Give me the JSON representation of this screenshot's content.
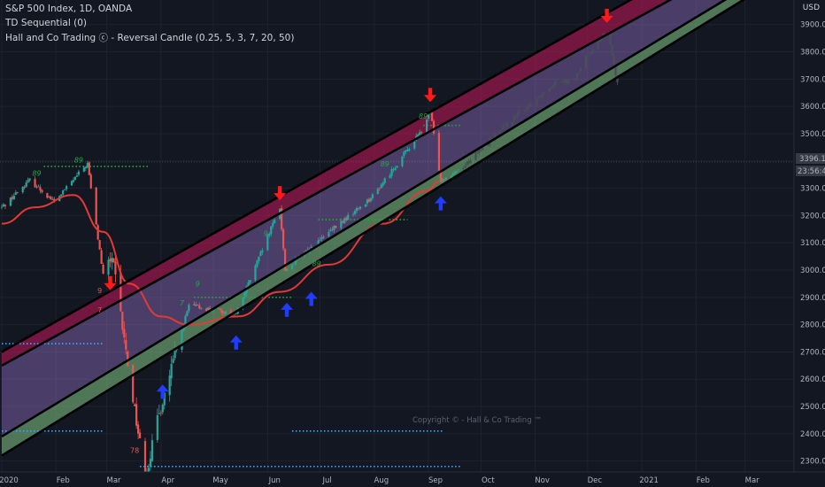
{
  "header": {
    "title": "S&P 500 Index, 1D, OANDA",
    "indicator_1": "TD Sequential (0)",
    "indicator_2": "Hall and Co Trading ⓒ - Reversal Candle (0.25, 5, 3, 7, 20, 50)"
  },
  "currency_label": "USD",
  "watermark": "Copyright © - Hall & Co Trading ™",
  "price_tags": {
    "last_price": "3396.1",
    "countdown": "23:56:45"
  },
  "colors": {
    "background": "#131722",
    "bull_candle": "#26a69a",
    "bear_candle": "#ef5350",
    "moving_average": "#e53935",
    "channel_lines": "#000000",
    "upper_band_fill": "#c2185b",
    "middle_band_fill": "#9575cd",
    "lower_band_fill": "#81c784",
    "sell_arrow": "#ff1a1a",
    "buy_arrow": "#1f3cff"
  },
  "chart_data": {
    "type": "candlestick",
    "symbol": "S&P 500 Index",
    "interval": "1D",
    "source": "OANDA",
    "y_axis": {
      "unit": "USD",
      "range": [
        2260,
        3990
      ],
      "ticks": [
        "2300.0",
        "2400.0",
        "2500.0",
        "2600.0",
        "2700.0",
        "2800.0",
        "2900.0",
        "3000.0",
        "3100.0",
        "3200.0",
        "3300.0",
        "3400.0",
        "3500.0",
        "3600.0",
        "3700.0",
        "3800.0",
        "3900.0"
      ]
    },
    "x_axis": {
      "range": [
        "2020-01-01",
        "2021-03-28"
      ],
      "tick_labels": [
        "2020",
        "Feb",
        "Mar",
        "Apr",
        "May",
        "Jun",
        "Jul",
        "Aug",
        "Sep",
        "Oct",
        "Nov",
        "Dec",
        "2021",
        "Feb",
        "Mar"
      ]
    },
    "price_path": [
      {
        "date": "2020-01-01",
        "close": 3230
      },
      {
        "date": "2020-01-17",
        "close": 3330
      },
      {
        "date": "2020-01-31",
        "close": 3250
      },
      {
        "date": "2020-02-19",
        "close": 3390
      },
      {
        "date": "2020-02-28",
        "close": 2980
      },
      {
        "date": "2020-03-04",
        "close": 3050
      },
      {
        "date": "2020-03-12",
        "close": 2700
      },
      {
        "date": "2020-03-23",
        "close": 2240
      },
      {
        "date": "2020-04-01",
        "close": 2500
      },
      {
        "date": "2020-04-17",
        "close": 2870
      },
      {
        "date": "2020-05-14",
        "close": 2840
      },
      {
        "date": "2020-06-08",
        "close": 3230
      },
      {
        "date": "2020-06-11",
        "close": 3000
      },
      {
        "date": "2020-07-01",
        "close": 3110
      },
      {
        "date": "2020-07-31",
        "close": 3270
      },
      {
        "date": "2020-08-28",
        "close": 3510
      },
      {
        "date": "2020-09-02",
        "close": 3580
      },
      {
        "date": "2020-09-08",
        "close": 3330
      },
      {
        "date": "2020-09-21",
        "close": 3380
      },
      {
        "date": "2020-10-10",
        "close": 3500
      },
      {
        "date": "2020-10-31",
        "close": 3620
      },
      {
        "date": "2020-11-14",
        "close": 3700
      },
      {
        "date": "2020-11-23",
        "close": 3690
      },
      {
        "date": "2020-12-01",
        "close": 3790
      },
      {
        "date": "2020-12-13",
        "close": 3880
      },
      {
        "date": "2020-12-15",
        "close": 3780
      },
      {
        "date": "2020-12-20",
        "close": 3640
      }
    ],
    "moving_average": [
      {
        "date": "2020-01-01",
        "value": 3170
      },
      {
        "date": "2020-01-20",
        "value": 3230
      },
      {
        "date": "2020-02-11",
        "value": 3275
      },
      {
        "date": "2020-02-28",
        "value": 3140
      },
      {
        "date": "2020-03-14",
        "value": 2950
      },
      {
        "date": "2020-04-01",
        "value": 2830
      },
      {
        "date": "2020-04-17",
        "value": 2800
      },
      {
        "date": "2020-05-15",
        "value": 2830
      },
      {
        "date": "2020-06-08",
        "value": 2920
      },
      {
        "date": "2020-07-06",
        "value": 3020
      },
      {
        "date": "2020-08-06",
        "value": 3170
      },
      {
        "date": "2020-08-31",
        "value": 3290
      },
      {
        "date": "2020-09-07",
        "value": 3325
      }
    ],
    "channel_lines": [
      {
        "name": "upper-1",
        "start": {
          "date": "2020-01-01",
          "value": 2700
        },
        "end": {
          "date": "2020-12-31",
          "value": 4010
        }
      },
      {
        "name": "upper-2",
        "start": {
          "date": "2020-01-01",
          "value": 2650
        },
        "end": {
          "date": "2020-12-31",
          "value": 3930
        }
      },
      {
        "name": "lower-1",
        "start": {
          "date": "2020-01-01",
          "value": 2390
        },
        "end": {
          "date": "2021-01-20",
          "value": 3880
        }
      },
      {
        "name": "lower-2",
        "start": {
          "date": "2020-01-01",
          "value": 2320
        },
        "end": {
          "date": "2021-01-31",
          "value": 3880
        }
      }
    ],
    "horizontal_levels": [
      {
        "value": 3380,
        "from": "2020-01-25",
        "to": "2020-03-25",
        "color": "#27a544"
      },
      {
        "value": 2730,
        "from": "2020-01-01",
        "to": "2020-02-28",
        "color": "#42a5f5"
      },
      {
        "value": 2410,
        "from": "2020-01-01",
        "to": "2020-02-28",
        "color": "#42a5f5"
      },
      {
        "value": 2410,
        "from": "2020-06-15",
        "to": "2020-09-10",
        "color": "#42a5f5"
      },
      {
        "value": 2280,
        "from": "2020-03-20",
        "to": "2020-09-20",
        "color": "#42a5f5"
      },
      {
        "value": 3530,
        "from": "2020-08-29",
        "to": "2020-09-20",
        "color": "#27a544"
      },
      {
        "value": 3185,
        "from": "2020-06-30",
        "to": "2020-08-20",
        "color": "#27a544"
      },
      {
        "value": 2900,
        "from": "2020-04-20",
        "to": "2020-06-15",
        "color": "#27a544"
      }
    ],
    "sell_arrows": [
      {
        "date": "2020-03-03",
        "price": 2900
      },
      {
        "date": "2020-06-08",
        "price": 3230
      },
      {
        "date": "2020-09-02",
        "price": 3590
      },
      {
        "date": "2020-12-12",
        "price": 3880
      }
    ],
    "buy_arrows": [
      {
        "date": "2020-04-02",
        "price": 2600
      },
      {
        "date": "2020-05-14",
        "price": 2780
      },
      {
        "date": "2020-06-12",
        "price": 2900
      },
      {
        "date": "2020-06-26",
        "price": 2940
      },
      {
        "date": "2020-09-08",
        "price": 3290
      }
    ],
    "td_labels": [
      {
        "text": "89",
        "date": "2020-01-21",
        "price": 3345,
        "color": "green"
      },
      {
        "text": "89",
        "date": "2020-02-14",
        "price": 3395,
        "color": "green"
      },
      {
        "text": "9",
        "date": "2020-02-26",
        "price": 2915,
        "color": "red"
      },
      {
        "text": "7",
        "date": "2020-02-26",
        "price": 2845,
        "color": "red"
      },
      {
        "text": "78",
        "date": "2020-03-17",
        "price": 2330,
        "color": "red"
      },
      {
        "text": "9",
        "date": "2020-04-22",
        "price": 2940,
        "color": "green"
      },
      {
        "text": "7",
        "date": "2020-04-13",
        "price": 2870,
        "color": "green"
      },
      {
        "text": "9",
        "date": "2020-05-31",
        "price": 3125,
        "color": "green"
      },
      {
        "text": "89",
        "date": "2020-06-29",
        "price": 3015,
        "color": "green"
      },
      {
        "text": "89",
        "date": "2020-08-07",
        "price": 3380,
        "color": "green"
      },
      {
        "text": "89",
        "date": "2020-08-29",
        "price": 3555,
        "color": "green"
      }
    ]
  }
}
